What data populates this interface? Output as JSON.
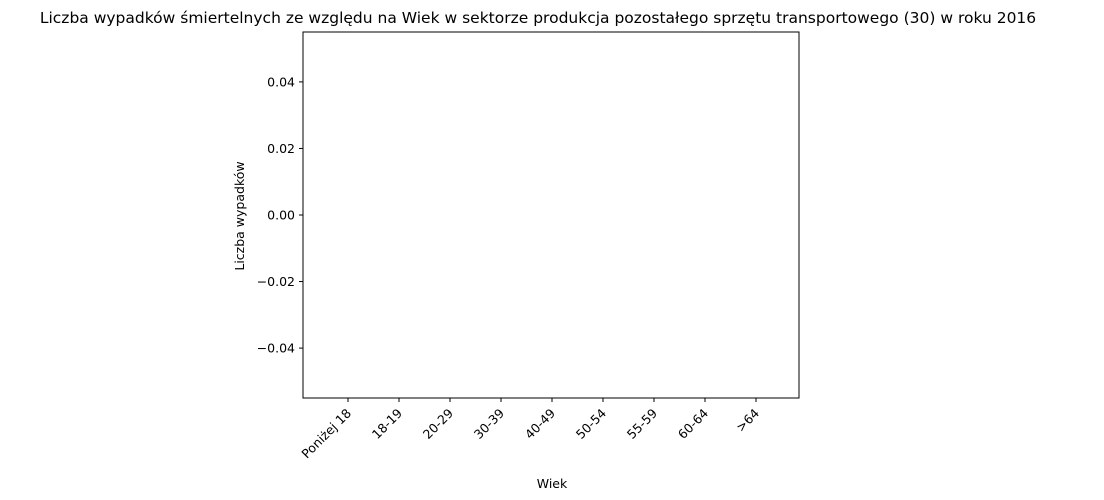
{
  "chart_data": {
    "type": "bar",
    "title": "Liczba wypadków śmiertelnych ze względu na Wiek w sektorze produkcja pozostałego sprzętu transportowego  (30)  w roku 2016",
    "xlabel": "Wiek",
    "ylabel": "Liczba wypadków",
    "categories": [
      "Poniżej 18",
      "18-19",
      "20-29",
      "30-39",
      "40-49",
      "50-54",
      "55-59",
      "60-64",
      ">64"
    ],
    "values": [
      0,
      0,
      0,
      0,
      0,
      0,
      0,
      0,
      0
    ],
    "ylim": [
      -0.055,
      0.055
    ],
    "yticks": [
      0.04,
      0.02,
      0.0,
      -0.02,
      -0.04
    ],
    "ytick_labels": [
      "0.04",
      "0.02",
      "0.00",
      "−0.02",
      "−0.04"
    ],
    "grid": false,
    "bar_color": "#1f77b4"
  }
}
